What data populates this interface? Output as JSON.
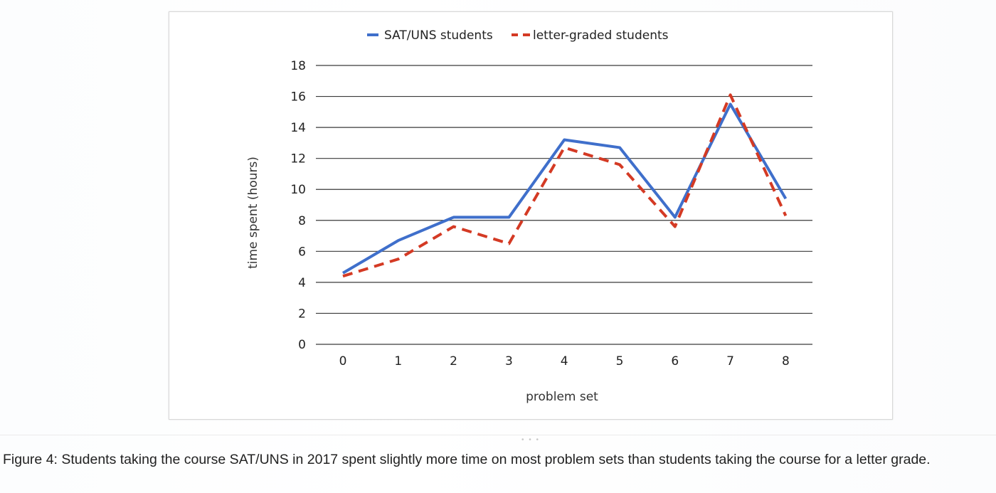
{
  "chart_data": {
    "type": "line",
    "title": "",
    "xlabel": "problem set",
    "ylabel": "time spent (hours)",
    "x": [
      0,
      1,
      2,
      3,
      4,
      5,
      6,
      7,
      8
    ],
    "ylim": [
      0,
      18
    ],
    "yticks": [
      0,
      2,
      4,
      6,
      8,
      10,
      12,
      14,
      16,
      18
    ],
    "grid": "horizontal",
    "legend_position": "top",
    "series": [
      {
        "name": "SAT/UNS students",
        "color": "#3f6fcb",
        "style": "solid",
        "values": [
          4.6,
          6.7,
          8.2,
          8.2,
          13.2,
          12.7,
          8.2,
          15.5,
          9.4
        ]
      },
      {
        "name": "letter-graded students",
        "color": "#d43a24",
        "style": "dashed",
        "values": [
          4.4,
          5.5,
          7.6,
          6.5,
          12.7,
          11.6,
          7.6,
          16.1,
          8.3
        ]
      }
    ]
  },
  "caption": "Figure 4: Students taking the course SAT/UNS in 2017 spent slightly more time on most problem sets than students taking the course for a letter grade.",
  "handle": "• • •"
}
